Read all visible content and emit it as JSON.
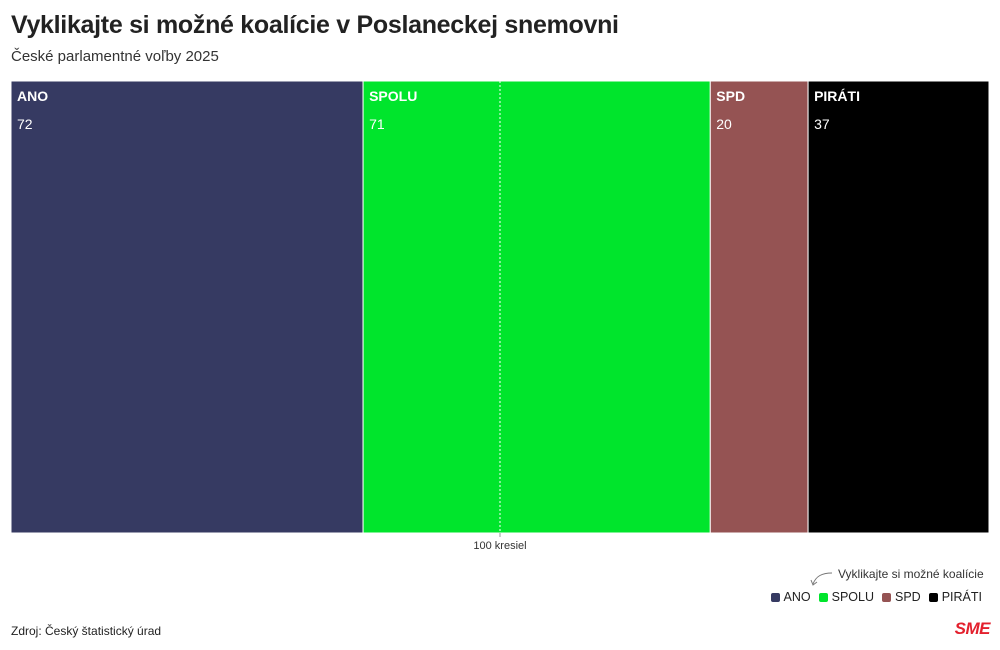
{
  "header": {
    "title": "Vyklikajte si možné koalície v Poslaneckej snemovni",
    "subtitle": "České parlamentné voľby 2025"
  },
  "chart_data": {
    "type": "bar",
    "orientation": "stacked-horizontal",
    "total": 200,
    "categories": [
      "ANO",
      "SPOLU",
      "SPD",
      "PIRÁTI"
    ],
    "values": [
      72,
      71,
      20,
      37
    ],
    "colors": [
      "#363a62",
      "#00e52c",
      "#955353",
      "#000000"
    ],
    "reference_line": {
      "value": 100,
      "label": "100 kresiel"
    },
    "legend_position": "bottom-right"
  },
  "legend": {
    "hint": "Vyklikajte si možné koalície",
    "items": [
      {
        "label": "ANO",
        "color": "#363a62"
      },
      {
        "label": "SPOLU",
        "color": "#00e52c"
      },
      {
        "label": "SPD",
        "color": "#955353"
      },
      {
        "label": "PIRÁTI",
        "color": "#000000"
      }
    ]
  },
  "footer": {
    "source": "Zdroj: Český štatistický úrad",
    "brand": "SME"
  }
}
